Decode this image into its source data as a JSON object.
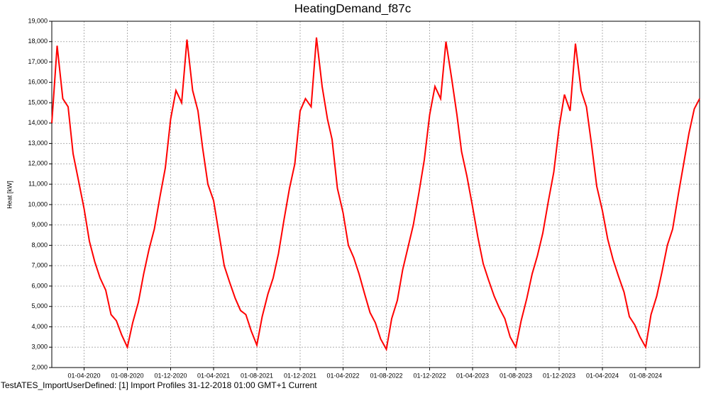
{
  "chart_data": {
    "type": "line",
    "title": "HeatingDemand_f87c",
    "y_label": "Heat [kW]",
    "caption": "TestATES_ImportUserDefined: [1] Import Profiles 31-12-2018 01:00 GMT+1 Current",
    "grid": true,
    "xlim": [
      "01-01-2020",
      "31-12-2024"
    ],
    "xticks": [
      "01-04-2020",
      "01-08-2020",
      "01-12-2020",
      "01-04-2021",
      "01-08-2021",
      "01-12-2021",
      "01-04-2022",
      "01-08-2022",
      "01-12-2022",
      "01-04-2023",
      "01-08-2023",
      "01-12-2023",
      "01-04-2024",
      "01-08-2024"
    ],
    "ylim": [
      2000,
      19000
    ],
    "yticks": [
      {
        "value": 2000,
        "label": "2,000"
      },
      {
        "value": 3000,
        "label": "3,000"
      },
      {
        "value": 4000,
        "label": "4,000"
      },
      {
        "value": 5000,
        "label": "5,000"
      },
      {
        "value": 6000,
        "label": "6,000"
      },
      {
        "value": 7000,
        "label": "7,000"
      },
      {
        "value": 8000,
        "label": "8,000"
      },
      {
        "value": 9000,
        "label": "9,000"
      },
      {
        "value": 10000,
        "label": "10,000"
      },
      {
        "value": 11000,
        "label": "11,000"
      },
      {
        "value": 12000,
        "label": "12,000"
      },
      {
        "value": 13000,
        "label": "13,000"
      },
      {
        "value": 14000,
        "label": "14,000"
      },
      {
        "value": 15000,
        "label": "15,000"
      },
      {
        "value": 16000,
        "label": "16,000"
      },
      {
        "value": 17000,
        "label": "17,000"
      },
      {
        "value": 18000,
        "label": "18,000"
      },
      {
        "value": 19000,
        "label": "19,000"
      }
    ],
    "series": [
      {
        "color": "#ff0000",
        "x": [
          "01-01-2020",
          "16-01-2020",
          "01-02-2020",
          "16-02-2020",
          "01-03-2020",
          "16-03-2020",
          "01-04-2020",
          "16-04-2020",
          "01-05-2020",
          "16-05-2020",
          "01-06-2020",
          "16-06-2020",
          "01-07-2020",
          "16-07-2020",
          "01-08-2020",
          "16-08-2020",
          "01-09-2020",
          "16-09-2020",
          "01-10-2020",
          "16-10-2020",
          "01-11-2020",
          "16-11-2020",
          "01-12-2020",
          "16-12-2020",
          "01-01-2021",
          "16-01-2021",
          "01-02-2021",
          "16-02-2021",
          "01-03-2021",
          "16-03-2021",
          "01-04-2021",
          "16-04-2021",
          "01-05-2021",
          "16-05-2021",
          "01-06-2021",
          "16-06-2021",
          "01-07-2021",
          "16-07-2021",
          "01-08-2021",
          "16-08-2021",
          "01-09-2021",
          "16-09-2021",
          "01-10-2021",
          "16-10-2021",
          "01-11-2021",
          "16-11-2021",
          "01-12-2021",
          "16-12-2021",
          "01-01-2022",
          "16-01-2022",
          "01-02-2022",
          "16-02-2022",
          "01-03-2022",
          "16-03-2022",
          "01-04-2022",
          "16-04-2022",
          "01-05-2022",
          "16-05-2022",
          "01-06-2022",
          "16-06-2022",
          "01-07-2022",
          "16-07-2022",
          "01-08-2022",
          "16-08-2022",
          "01-09-2022",
          "16-09-2022",
          "01-10-2022",
          "16-10-2022",
          "01-11-2022",
          "16-11-2022",
          "01-12-2022",
          "16-12-2022",
          "01-01-2023",
          "16-01-2023",
          "01-02-2023",
          "16-02-2023",
          "01-03-2023",
          "16-03-2023",
          "01-04-2023",
          "16-04-2023",
          "01-05-2023",
          "16-05-2023",
          "01-06-2023",
          "16-06-2023",
          "01-07-2023",
          "16-07-2023",
          "01-08-2023",
          "16-08-2023",
          "01-09-2023",
          "16-09-2023",
          "01-10-2023",
          "16-10-2023",
          "01-11-2023",
          "16-11-2023",
          "01-12-2023",
          "16-12-2023",
          "01-01-2024",
          "16-01-2024",
          "01-02-2024",
          "16-02-2024",
          "01-03-2024",
          "16-03-2024",
          "01-04-2024",
          "16-04-2024",
          "01-05-2024",
          "16-05-2024",
          "01-06-2024",
          "16-06-2024",
          "01-07-2024",
          "16-07-2024",
          "01-08-2024",
          "16-08-2024",
          "01-09-2024",
          "16-09-2024",
          "01-10-2024",
          "16-10-2024",
          "01-11-2024",
          "16-11-2024",
          "01-12-2024",
          "16-12-2024",
          "31-12-2024"
        ],
        "values": [
          14000,
          17800,
          15200,
          14800,
          12500,
          11200,
          9800,
          8200,
          7200,
          6400,
          5800,
          4600,
          4300,
          3600,
          3000,
          4200,
          5200,
          6600,
          7800,
          8800,
          10400,
          11800,
          14200,
          15600,
          15000,
          18100,
          15600,
          14600,
          12800,
          11000,
          10200,
          8600,
          7000,
          6200,
          5400,
          4800,
          4600,
          3800,
          3100,
          4500,
          5600,
          6400,
          7600,
          9200,
          10800,
          12000,
          14600,
          15200,
          14800,
          18200,
          15800,
          14200,
          13200,
          10800,
          9600,
          8000,
          7400,
          6600,
          5600,
          4700,
          4200,
          3400,
          2900,
          4400,
          5300,
          6800,
          7900,
          9000,
          10600,
          12200,
          14400,
          15800,
          15200,
          18000,
          16200,
          14400,
          12600,
          11400,
          9900,
          8400,
          7100,
          6300,
          5500,
          4900,
          4400,
          3500,
          3000,
          4300,
          5400,
          6600,
          7500,
          8600,
          10200,
          11600,
          13800,
          15400,
          14600,
          17900,
          15600,
          14800,
          13000,
          10900,
          9700,
          8300,
          7300,
          6500,
          5700,
          4500,
          4100,
          3500,
          3000,
          4600,
          5500,
          6700,
          8000,
          8800,
          10500,
          12000,
          13500,
          14700,
          15200
        ]
      }
    ]
  }
}
